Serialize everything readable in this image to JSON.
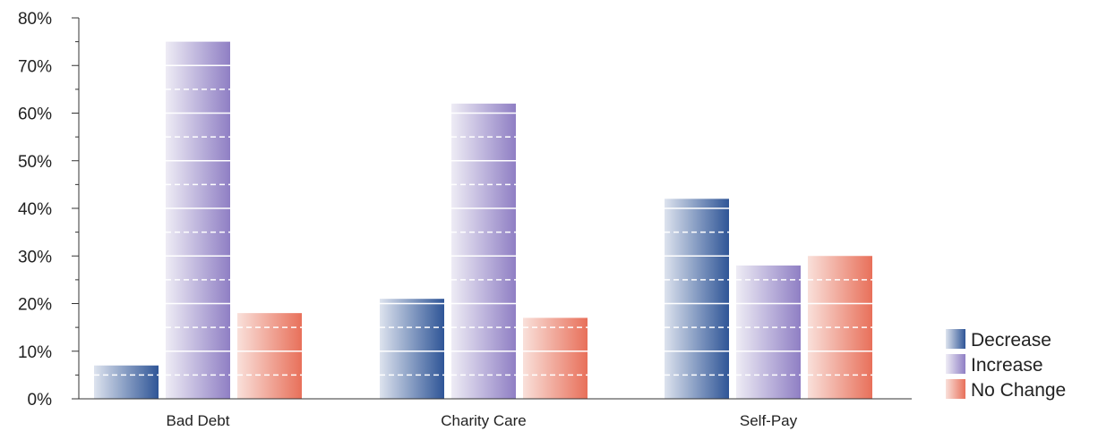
{
  "chart_data": {
    "type": "bar",
    "categories": [
      "Bad Debt",
      "Charity Care",
      "Self-Pay"
    ],
    "series": [
      {
        "name": "Decrease",
        "values": [
          7,
          21,
          42
        ],
        "color": "#2f5597",
        "color_light": "#dde3ee"
      },
      {
        "name": "Increase",
        "values": [
          75,
          62,
          28
        ],
        "color": "#8f7fc4",
        "color_light": "#eeecf5"
      },
      {
        "name": "No Change",
        "values": [
          18,
          17,
          30
        ],
        "color": "#e8705a",
        "color_light": "#f9e0da"
      }
    ],
    "y_ticks": [
      "0%",
      "10%",
      "20%",
      "30%",
      "40%",
      "50%",
      "60%",
      "70%",
      "80%"
    ],
    "ylim": [
      0,
      80
    ],
    "y_unit": "%",
    "title": "",
    "xlabel": "",
    "ylabel": "",
    "legend_position": "bottom-right",
    "bar_gridlines": true
  }
}
